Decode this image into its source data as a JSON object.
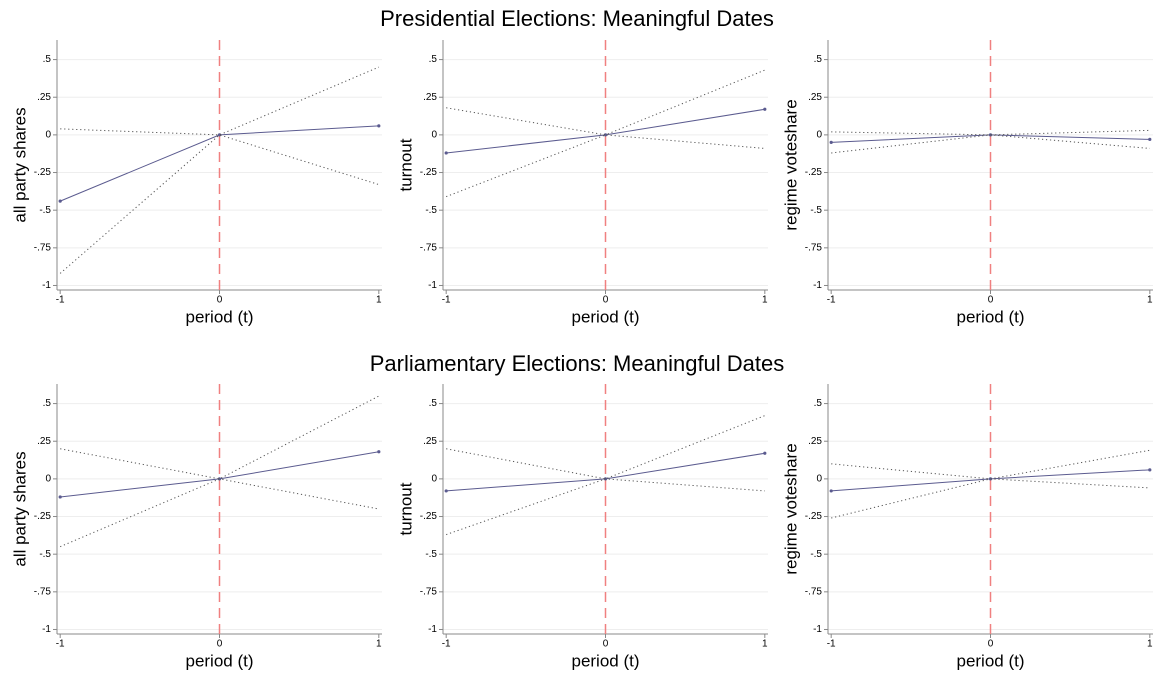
{
  "titles": [
    "Presidential Elections: Meaningful Dates",
    "Parliamentary Elections: Meaningful Dates"
  ],
  "chart_data": [
    {
      "type": "line",
      "xlabel": "period (t)",
      "ylabel": "all party shares",
      "x": [
        -1,
        0,
        1
      ],
      "series": [
        {
          "color": "#5b5b8f",
          "dash": "solid",
          "markers": true,
          "values": [
            -0.44,
            0,
            0.06
          ]
        },
        {
          "color": "#555555",
          "dash": "dotted",
          "markers": false,
          "values": [
            -0.92,
            0,
            -0.33
          ]
        },
        {
          "color": "#555555",
          "dash": "dotted",
          "markers": false,
          "values": [
            0.04,
            0,
            0.45
          ]
        }
      ],
      "xlim": [
        -1.02,
        1.02
      ],
      "ylim": [
        -1.03,
        0.63
      ],
      "xticks": [
        -1,
        0,
        1
      ],
      "yticks": [
        -1,
        {
          "value": -0.75,
          "label": "-.75"
        },
        {
          "value": -0.5,
          "label": "-.5"
        },
        {
          "value": -0.25,
          "label": "-.25"
        },
        0,
        {
          "value": 0.25,
          "label": ".25"
        },
        {
          "value": 0.5,
          "label": ".5"
        }
      ],
      "grid": true,
      "vline": 0,
      "vline_color": "#f08080"
    },
    {
      "type": "line",
      "xlabel": "period (t)",
      "ylabel": "turnout",
      "x": [
        -1,
        0,
        1
      ],
      "series": [
        {
          "color": "#5b5b8f",
          "dash": "solid",
          "markers": true,
          "values": [
            -0.12,
            0,
            0.17
          ]
        },
        {
          "color": "#555555",
          "dash": "dotted",
          "markers": false,
          "values": [
            -0.41,
            0,
            -0.09
          ]
        },
        {
          "color": "#555555",
          "dash": "dotted",
          "markers": false,
          "values": [
            0.18,
            0,
            0.43
          ]
        }
      ],
      "xlim": [
        -1.02,
        1.02
      ],
      "ylim": [
        -1.03,
        0.63
      ],
      "xticks": [
        -1,
        0,
        1
      ],
      "yticks": [
        -1,
        {
          "value": -0.75,
          "label": "-.75"
        },
        {
          "value": -0.5,
          "label": "-.5"
        },
        {
          "value": -0.25,
          "label": "-.25"
        },
        0,
        {
          "value": 0.25,
          "label": ".25"
        },
        {
          "value": 0.5,
          "label": ".5"
        }
      ],
      "grid": true,
      "vline": 0,
      "vline_color": "#f08080"
    },
    {
      "type": "line",
      "xlabel": "period (t)",
      "ylabel": "regime voteshare",
      "x": [
        -1,
        0,
        1
      ],
      "series": [
        {
          "color": "#5b5b8f",
          "dash": "solid",
          "markers": true,
          "values": [
            -0.05,
            0,
            -0.03
          ]
        },
        {
          "color": "#555555",
          "dash": "dotted",
          "markers": false,
          "values": [
            -0.12,
            0,
            -0.09
          ]
        },
        {
          "color": "#555555",
          "dash": "dotted",
          "markers": false,
          "values": [
            0.02,
            0,
            0.03
          ]
        }
      ],
      "xlim": [
        -1.02,
        1.02
      ],
      "ylim": [
        -1.03,
        0.63
      ],
      "xticks": [
        -1,
        0,
        1
      ],
      "yticks": [
        -1,
        {
          "value": -0.75,
          "label": "-.75"
        },
        {
          "value": -0.5,
          "label": "-.5"
        },
        {
          "value": -0.25,
          "label": "-.25"
        },
        0,
        {
          "value": 0.25,
          "label": ".25"
        },
        {
          "value": 0.5,
          "label": ".5"
        }
      ],
      "grid": true,
      "vline": 0,
      "vline_color": "#f08080"
    },
    {
      "type": "line",
      "xlabel": "period (t)",
      "ylabel": "all party shares",
      "x": [
        -1,
        0,
        1
      ],
      "series": [
        {
          "color": "#5b5b8f",
          "dash": "solid",
          "markers": true,
          "values": [
            -0.12,
            0,
            0.18
          ]
        },
        {
          "color": "#555555",
          "dash": "dotted",
          "markers": false,
          "values": [
            -0.45,
            0,
            -0.2
          ]
        },
        {
          "color": "#555555",
          "dash": "dotted",
          "markers": false,
          "values": [
            0.2,
            0,
            0.55
          ]
        }
      ],
      "xlim": [
        -1.02,
        1.02
      ],
      "ylim": [
        -1.03,
        0.63
      ],
      "xticks": [
        -1,
        0,
        1
      ],
      "yticks": [
        -1,
        {
          "value": -0.75,
          "label": "-.75"
        },
        {
          "value": -0.5,
          "label": "-.5"
        },
        {
          "value": -0.25,
          "label": "-.25"
        },
        0,
        {
          "value": 0.25,
          "label": ".25"
        },
        {
          "value": 0.5,
          "label": ".5"
        }
      ],
      "grid": true,
      "vline": 0,
      "vline_color": "#f08080"
    },
    {
      "type": "line",
      "xlabel": "period (t)",
      "ylabel": "turnout",
      "x": [
        -1,
        0,
        1
      ],
      "series": [
        {
          "color": "#5b5b8f",
          "dash": "solid",
          "markers": true,
          "values": [
            -0.08,
            0,
            0.17
          ]
        },
        {
          "color": "#555555",
          "dash": "dotted",
          "markers": false,
          "values": [
            -0.37,
            0,
            -0.08
          ]
        },
        {
          "color": "#555555",
          "dash": "dotted",
          "markers": false,
          "values": [
            0.2,
            0,
            0.42
          ]
        }
      ],
      "xlim": [
        -1.02,
        1.02
      ],
      "ylim": [
        -1.03,
        0.63
      ],
      "xticks": [
        -1,
        0,
        1
      ],
      "yticks": [
        -1,
        {
          "value": -0.75,
          "label": "-.75"
        },
        {
          "value": -0.5,
          "label": "-.5"
        },
        {
          "value": -0.25,
          "label": "-.25"
        },
        0,
        {
          "value": 0.25,
          "label": ".25"
        },
        {
          "value": 0.5,
          "label": ".5"
        }
      ],
      "grid": true,
      "vline": 0,
      "vline_color": "#f08080"
    },
    {
      "type": "line",
      "xlabel": "period (t)",
      "ylabel": "regime voteshare",
      "x": [
        -1,
        0,
        1
      ],
      "series": [
        {
          "color": "#5b5b8f",
          "dash": "solid",
          "markers": true,
          "values": [
            -0.08,
            0,
            0.06
          ]
        },
        {
          "color": "#555555",
          "dash": "dotted",
          "markers": false,
          "values": [
            -0.26,
            0,
            -0.06
          ]
        },
        {
          "color": "#555555",
          "dash": "dotted",
          "markers": false,
          "values": [
            0.1,
            0,
            0.19
          ]
        }
      ],
      "xlim": [
        -1.02,
        1.02
      ],
      "ylim": [
        -1.03,
        0.63
      ],
      "xticks": [
        -1,
        0,
        1
      ],
      "yticks": [
        -1,
        {
          "value": -0.75,
          "label": "-.75"
        },
        {
          "value": -0.5,
          "label": "-.5"
        },
        {
          "value": -0.25,
          "label": "-.25"
        },
        0,
        {
          "value": 0.25,
          "label": ".25"
        },
        {
          "value": 0.5,
          "label": ".5"
        }
      ],
      "grid": true,
      "vline": 0,
      "vline_color": "#f08080"
    }
  ]
}
